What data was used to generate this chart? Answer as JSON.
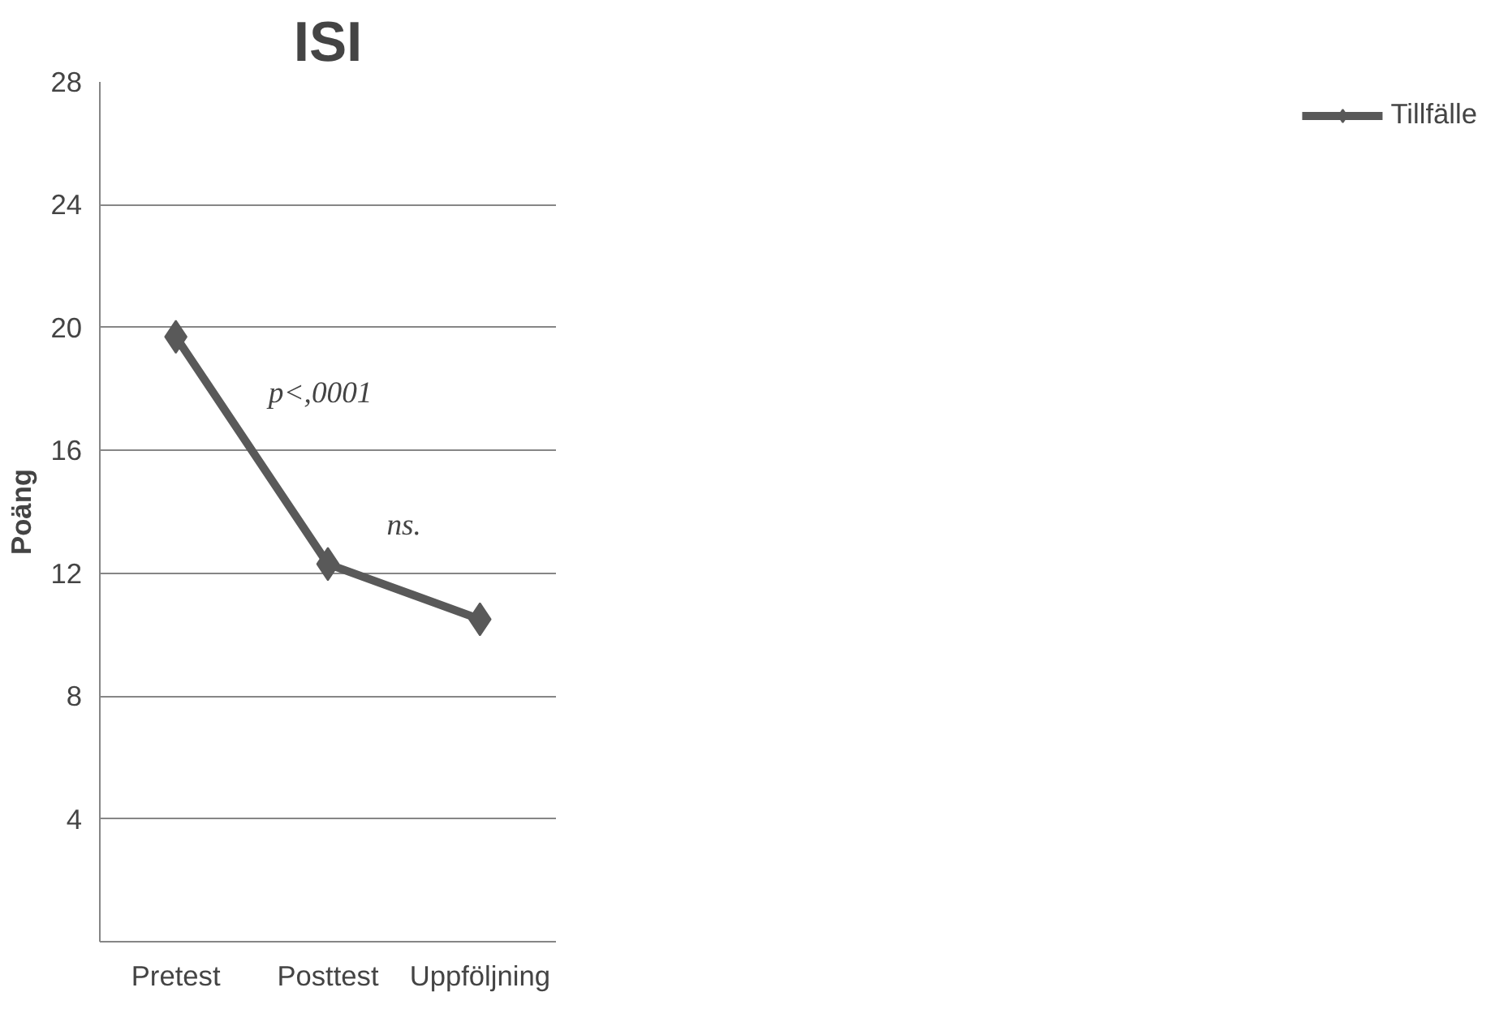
{
  "chart_data": {
    "type": "line",
    "title": "ISI",
    "ylabel": "Poäng",
    "categories": [
      "Pretest",
      "Posttest",
      "Uppföljning"
    ],
    "series": [
      {
        "name": "Tillfälle",
        "color": "#595959",
        "values": [
          19.7,
          12.3,
          10.5
        ]
      }
    ],
    "ylim": [
      0,
      28
    ],
    "yticks": [
      {
        "value": 0,
        "label": null
      },
      4,
      8,
      12,
      16,
      20,
      24,
      28
    ],
    "grid": "y",
    "legend": "right",
    "marker": "diamond",
    "line_style": "solid",
    "annotations": [
      "p<,0001",
      "ns."
    ]
  }
}
